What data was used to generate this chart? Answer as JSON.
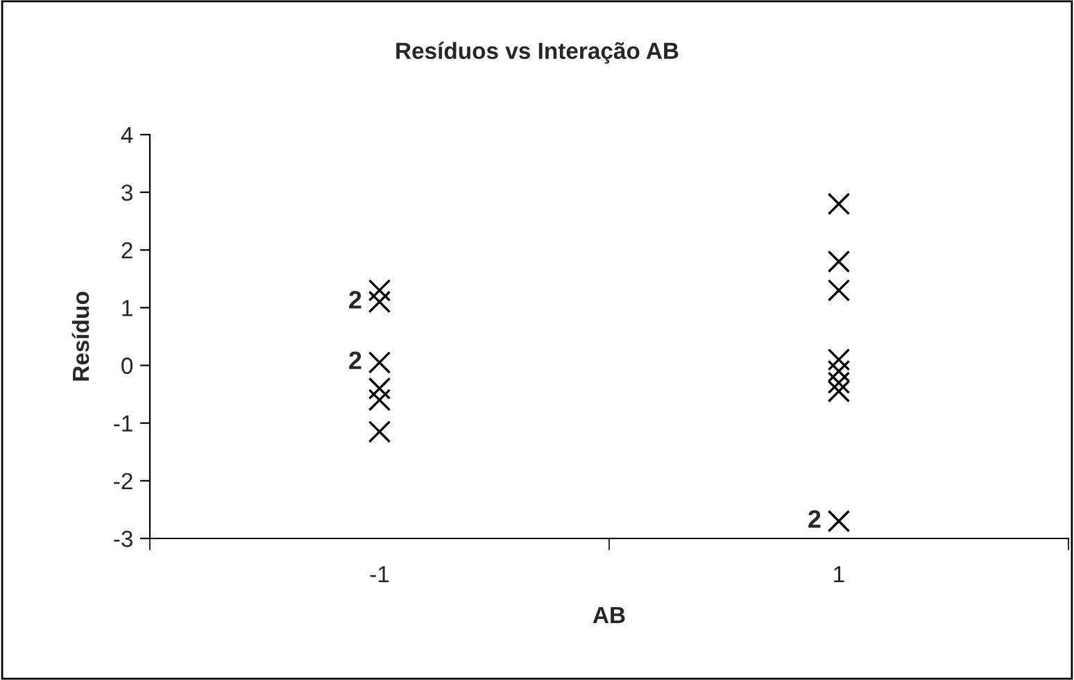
{
  "chart_data": {
    "type": "scatter",
    "title": "Resíduos vs Interação AB",
    "xlabel": "AB",
    "ylabel": "Resíduo",
    "categories": [
      "-1",
      "1"
    ],
    "series": [
      {
        "color": "#000000",
        "x": [
          "-1",
          "-1",
          "-1",
          "-1",
          "-1",
          "-1",
          "1",
          "1",
          "1",
          "1",
          "1",
          "1",
          "1",
          "1"
        ],
        "values": [
          1.3,
          1.1,
          0.05,
          -0.4,
          -0.6,
          -1.15,
          2.8,
          1.8,
          1.3,
          0.1,
          -0.1,
          -0.3,
          -0.45,
          -2.7
        ]
      }
    ],
    "marker": "cross",
    "ylim": [
      -3,
      4
    ],
    "yticks": [
      -3,
      -2,
      -1,
      0,
      1,
      2,
      3,
      4
    ],
    "grid": false,
    "legend": false,
    "annotations": [
      {
        "text": "2",
        "x": "-1",
        "y": 1.1
      },
      {
        "text": "2",
        "x": "-1",
        "y": 0.05
      },
      {
        "text": "2",
        "x": "1",
        "y": -2.7
      }
    ]
  }
}
